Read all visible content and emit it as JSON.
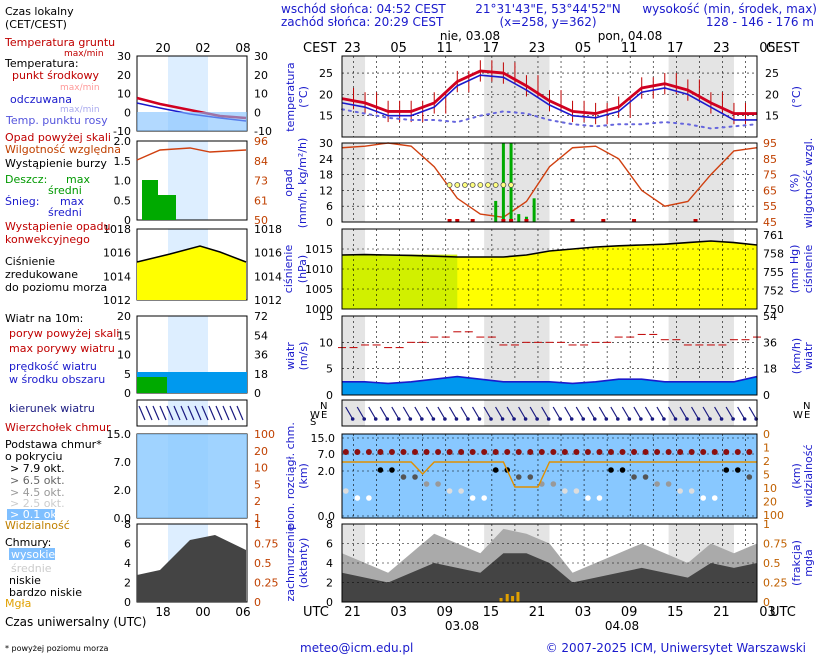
{
  "header": {
    "sunrise": "wschód słońca: 04:52 CEST",
    "sunset": "zachód słońca: 20:29 CEST",
    "coords": "21°31'43\"E, 53°44'52\"N",
    "grid": "(x=258, y=362)",
    "height_title": "wysokość (min, środek, max)",
    "height_values": "128 - 146 - 176 m"
  },
  "legend": {
    "local_time": "Czas lokalny",
    "local_time2": "(CET/CEST)",
    "soil_temp": "Temperatura gruntu",
    "maxmin": "max/min",
    "temperature": "Temperatura:",
    "midpoint": "punkt środkowy",
    "maxmin2": "max/min",
    "felt": "odczuwana",
    "maxmin3": "max/min",
    "dewpoint": "Temp. punktu rosy",
    "precip_above": "Opad powyżej skali",
    "humidity": "Wilgotność względna",
    "storm": "Wystąpienie burzy",
    "rain": "Deszcz:",
    "rain_max": "max",
    "rain_mid": "średni",
    "snow": "Śnieg:",
    "snow_max": "max",
    "snow_mid": "średni",
    "conv1": "Wystąpienie opadu",
    "conv2": "konwekcyjnego",
    "press1": "Ciśnienie",
    "press2": "zredukowane",
    "press3": "do poziomu morza",
    "wind": "Wiatr na 10m:",
    "gust_above": "poryw powyżej skali",
    "gust_max": "max porywy wiatru",
    "wind_speed1": "prędkość wiatru",
    "wind_speed2": "w środku obszaru",
    "wind_dir": "kierunek wiatru",
    "cloud_top": "Wierzchołek chmur",
    "cloud_base1": "Podstawa chmur*",
    "cloud_base2": "o pokryciu",
    "okt79": "> 7.9 okt.",
    "okt65": "> 6.5 okt.",
    "okt45": "> 4.5 okt.",
    "okt25": "> 2.5 okt.",
    "okt01": "> 0.1 okt.",
    "visibility": "Widzialność",
    "clouds": "Chmury:",
    "high": "wysokie",
    "mid": "średnie",
    "low": "niskie",
    "verylow": "bardzo niskie",
    "fog": "Mgła",
    "utc": "Czas uniwersalny (UTC)",
    "footnote": "* powyżej poziomu morza"
  },
  "top_axis": {
    "cest": "CEST",
    "day1": "nie, 03.08",
    "day2": "pon, 04.08",
    "ticks": [
      "23",
      "05",
      "11",
      "17",
      "23",
      "05",
      "11",
      "17",
      "23",
      "05"
    ]
  },
  "bottom_axis": {
    "utc": "UTC",
    "ticks": [
      "21",
      "03",
      "09",
      "15",
      "21",
      "03",
      "09",
      "15",
      "21",
      "03"
    ],
    "date1": "03.08",
    "date2": "04.08"
  },
  "left_axis": {
    "top": [
      "20",
      "02",
      "08"
    ],
    "bottom": [
      "18",
      "00",
      "06"
    ]
  },
  "panel_labels": {
    "temp_l": "temperatura",
    "temp_l2": "(°C)",
    "temp_r": "(°C)",
    "precip_l1": "opad",
    "precip_l2": "(mm/h, kg/m²/h)",
    "precip_r1": "(%)",
    "precip_r2": "wilgotność wzgl.",
    "press_l1": "ciśnienie",
    "press_l2": "(hPa)",
    "press_r1": "(mm Hg)",
    "press_r2": "ciśnienie",
    "wind_l1": "wiatr",
    "wind_l2": "(m/s)",
    "wind_r1": "(km/h)",
    "wind_r2": "wiatr",
    "cloud_l1": "pion. rozciągł. chm.",
    "cloud_l2": "(km)",
    "cloud_r1": "(km)",
    "cloud_r2": "widzialność",
    "cov_l1": "zachmurzenie",
    "cov_l2": "(oktanty)",
    "cov_r1": "(frakcja)",
    "cov_r2": "mgła",
    "wd_n": "N",
    "wd_ws": "W",
    "wd_e": "E",
    "wd_s": "S"
  },
  "footer": {
    "email": "meteo@icm.edu.pl",
    "copyright": "© 2007-2025 ICM, Uniwersytet Warszawski"
  },
  "chart_data": [
    {
      "type": "line",
      "title": "temperatura",
      "ylabel": "(°C)",
      "ylim": [
        10,
        29
      ],
      "yticks": [
        15,
        20,
        25
      ],
      "x_hours_utc": [
        0,
        3,
        6,
        9,
        12,
        15,
        18,
        21,
        24,
        27,
        30,
        33,
        36,
        39,
        42,
        45,
        48,
        51,
        54
      ],
      "series": [
        {
          "name": "temperatura",
          "values": [
            19,
            18,
            16,
            16,
            18,
            23,
            25.5,
            25,
            22,
            18.5,
            16,
            15.5,
            17,
            21.5,
            22.5,
            21,
            18,
            15.5,
            15.5
          ]
        },
        {
          "name": "odczuwana",
          "values": [
            18,
            17,
            15,
            15,
            17,
            22,
            24.5,
            24,
            21,
            17.5,
            15,
            14.5,
            16,
            20.5,
            21.5,
            20,
            17,
            14,
            14
          ]
        },
        {
          "name": "punkt rosy",
          "values": [
            16.5,
            15.5,
            14.5,
            14,
            14,
            13.5,
            15,
            16,
            15.5,
            14,
            13,
            12.5,
            13,
            13,
            13.5,
            13,
            12,
            12.5,
            13
          ]
        }
      ]
    },
    {
      "type": "bar",
      "title": "opad",
      "ylabel": "(mm/h, kg/m²/h)",
      "ylim": [
        0,
        30
      ],
      "yticks": [
        0,
        6,
        12,
        18,
        24,
        30
      ],
      "y2label": "wilgotność wzgl. (%)",
      "y2lim": [
        45,
        95
      ],
      "y2ticks": [
        45,
        55,
        65,
        75,
        85,
        95
      ],
      "humidity": [
        92,
        93,
        95,
        93,
        80,
        60,
        50,
        48,
        58,
        80,
        92,
        93,
        85,
        65,
        55,
        58,
        75,
        90,
        92
      ],
      "rain_x_hours": [
        20,
        21,
        22,
        23,
        24,
        25
      ],
      "rain_values": [
        8,
        30,
        30,
        3,
        2,
        9
      ]
    },
    {
      "type": "area",
      "title": "ciśnienie",
      "ylabel": "(hPa)",
      "ylim": [
        1000,
        1020
      ],
      "yticks": [
        1000,
        1005,
        1010,
        1015
      ],
      "y2label": "(mm Hg)",
      "y2ticks": [
        750,
        752,
        755,
        758,
        761
      ],
      "values": [
        1013.5,
        1013.6,
        1013.5,
        1013.4,
        1013.2,
        1013,
        1013,
        1013,
        1013.5,
        1014.5,
        1015,
        1015.5,
        1015.8,
        1016,
        1016.2,
        1016.6,
        1017,
        1016.6,
        1016
      ]
    },
    {
      "type": "area",
      "title": "wiatr",
      "ylabel": "(m/s)",
      "ylim": [
        0,
        15
      ],
      "yticks": [
        0,
        5,
        10,
        15
      ],
      "y2label": "(km/h)",
      "y2ticks": [
        0,
        18,
        36,
        54
      ],
      "speed": [
        2.5,
        2.5,
        2.2,
        2.5,
        3,
        3.5,
        3,
        2.5,
        2.5,
        2.5,
        2.2,
        2.5,
        3,
        3,
        2.5,
        2.5,
        2.5,
        2.5,
        3.5
      ],
      "gusts": [
        9,
        9.5,
        9,
        10,
        11,
        12,
        11,
        9.5,
        10,
        10,
        9.5,
        10,
        11,
        11.5,
        10.5,
        9.5,
        9.5,
        10.5,
        11
      ]
    },
    {
      "type": "scatter",
      "title": "pion. rozciągł. chm.",
      "ylabel": "(km)",
      "ylim": [
        0,
        15
      ],
      "yticks": [
        0.0,
        2.0,
        7.0,
        15.0
      ],
      "y2label": "widzialność (km)",
      "y2ticks": [
        0,
        1,
        2,
        5,
        10,
        20,
        100
      ]
    },
    {
      "type": "area",
      "title": "zachmurzenie",
      "ylabel": "(oktanty)",
      "ylim": [
        0,
        8
      ],
      "yticks": [
        0,
        2,
        4,
        6,
        8
      ],
      "y2label": "mgła (frakcja)",
      "y2ticks": [
        0,
        0.25,
        0.5,
        0.75,
        1
      ],
      "low_clouds": [
        3,
        2.5,
        2,
        3,
        4,
        3.5,
        3,
        5,
        5,
        4,
        2,
        2.5,
        3,
        3.5,
        3,
        2.5,
        4,
        3.5,
        4
      ],
      "total_clouds": [
        5,
        4,
        3,
        5,
        7,
        6,
        5,
        7.5,
        7,
        6,
        3,
        4,
        5,
        6,
        5,
        4,
        6,
        5,
        6
      ]
    }
  ]
}
